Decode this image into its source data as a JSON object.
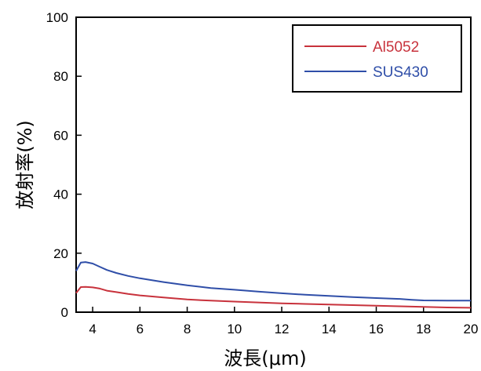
{
  "chart_data": {
    "type": "line",
    "xlabel": "波長(μm)",
    "ylabel": "放射率(%)",
    "xlim": [
      3.3,
      20
    ],
    "ylim": [
      0,
      100
    ],
    "xticks": [
      4,
      6,
      8,
      10,
      12,
      14,
      16,
      18,
      20
    ],
    "yticks": [
      0,
      20,
      40,
      60,
      80,
      100
    ],
    "grid": false,
    "legend_position": "top-right",
    "series": [
      {
        "name": "Al5052",
        "color": "#c8323c",
        "x": [
          3.3,
          3.5,
          3.7,
          4.0,
          4.3,
          4.6,
          5.0,
          5.5,
          6.0,
          7.0,
          8.0,
          9.0,
          10.0,
          11.0,
          12.0,
          13.0,
          14.0,
          15.0,
          16.0,
          17.0,
          18.0,
          19.0,
          20.0
        ],
        "y": [
          6.5,
          8.5,
          8.6,
          8.4,
          8.0,
          7.3,
          6.8,
          6.2,
          5.7,
          5.0,
          4.3,
          3.9,
          3.6,
          3.3,
          3.0,
          2.8,
          2.6,
          2.4,
          2.2,
          2.0,
          1.8,
          1.6,
          1.5
        ]
      },
      {
        "name": "SUS430",
        "color": "#2f4ea8",
        "x": [
          3.3,
          3.5,
          3.7,
          4.0,
          4.3,
          4.6,
          5.0,
          5.5,
          6.0,
          7.0,
          8.0,
          9.0,
          10.0,
          11.0,
          12.0,
          13.0,
          14.0,
          15.0,
          16.0,
          17.0,
          17.5,
          18.0,
          19.0,
          20.0
        ],
        "y": [
          14.0,
          16.8,
          17.0,
          16.5,
          15.4,
          14.3,
          13.3,
          12.3,
          11.5,
          10.2,
          9.1,
          8.2,
          7.6,
          7.0,
          6.4,
          5.9,
          5.5,
          5.1,
          4.8,
          4.5,
          4.2,
          4.0,
          3.9,
          3.9
        ]
      }
    ]
  }
}
